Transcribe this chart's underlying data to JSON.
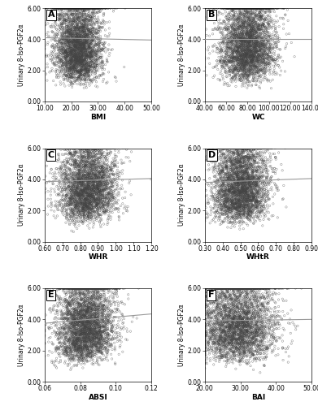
{
  "panels": [
    {
      "label": "A",
      "xlabel": "BMI",
      "ylabel": "Urinary 8-Iso-PGF2α",
      "xlim": [
        10,
        50
      ],
      "ylim": [
        0.0,
        6.0
      ],
      "xticks": [
        10.0,
        20.0,
        30.0,
        40.0,
        50.0
      ],
      "yticks": [
        0.0,
        2.0,
        4.0,
        6.0
      ],
      "x_center": 22.5,
      "x_spread": 4.5,
      "trend_y_start": 4.1,
      "trend_y_end": 3.95
    },
    {
      "label": "B",
      "xlabel": "WC",
      "ylabel": "Urinary 8-Iso-PGF2α",
      "xlim": [
        40,
        140
      ],
      "ylim": [
        0.0,
        6.0
      ],
      "xticks": [
        40.0,
        60.0,
        80.0,
        100.0,
        120.0,
        140.0
      ],
      "yticks": [
        0.0,
        2.0,
        4.0,
        6.0
      ],
      "x_center": 80,
      "x_spread": 13,
      "trend_y_start": 4.0,
      "trend_y_end": 4.0
    },
    {
      "label": "C",
      "xlabel": "WHR",
      "ylabel": "Urinary 8-Iso-PGF2α",
      "xlim": [
        0.6,
        1.2
      ],
      "ylim": [
        0.0,
        6.0
      ],
      "xticks": [
        0.6,
        0.7,
        0.8,
        0.9,
        1.0,
        1.1,
        1.2
      ],
      "yticks": [
        0.0,
        2.0,
        4.0,
        6.0
      ],
      "x_center": 0.84,
      "x_spread": 0.08,
      "trend_y_start": 3.85,
      "trend_y_end": 4.05
    },
    {
      "label": "D",
      "xlabel": "WHtR",
      "ylabel": "Urinary 8-Iso-PGF2α",
      "xlim": [
        0.3,
        0.9
      ],
      "ylim": [
        0.0,
        6.0
      ],
      "xticks": [
        0.3,
        0.4,
        0.5,
        0.6,
        0.7,
        0.8,
        0.9
      ],
      "yticks": [
        0.0,
        2.0,
        4.0,
        6.0
      ],
      "x_center": 0.5,
      "x_spread": 0.08,
      "trend_y_start": 3.8,
      "trend_y_end": 4.05
    },
    {
      "label": "E",
      "xlabel": "ABSI",
      "ylabel": "Urinary 8-Iso-PGF2α",
      "xlim": [
        0.06,
        0.12
      ],
      "ylim": [
        0.0,
        6.0
      ],
      "xticks": [
        0.06,
        0.08,
        0.1,
        0.12
      ],
      "yticks": [
        0.0,
        2.0,
        4.0,
        6.0
      ],
      "x_center": 0.083,
      "x_spread": 0.008,
      "trend_y_start": 3.75,
      "trend_y_end": 4.35
    },
    {
      "label": "F",
      "xlabel": "BAI",
      "ylabel": "Urinary 8-Iso-PGF2α",
      "xlim": [
        20,
        50
      ],
      "ylim": [
        0.0,
        6.0
      ],
      "xticks": [
        20,
        30,
        40,
        50
      ],
      "yticks": [
        0.0,
        2.0,
        4.0,
        6.0
      ],
      "x_center": 29,
      "x_spread": 5.5,
      "trend_y_start": 3.9,
      "trend_y_end": 4.0
    }
  ],
  "n_points": 3762,
  "dot_color_edge": "#444444",
  "dot_color_face": "none",
  "dot_size": 3,
  "trend_color": "#999999",
  "background_color": "#ffffff",
  "panel_label_fontsize": 8,
  "axis_label_fontsize": 6.5,
  "tick_fontsize": 5.5,
  "ylabel_fontsize": 5.5
}
